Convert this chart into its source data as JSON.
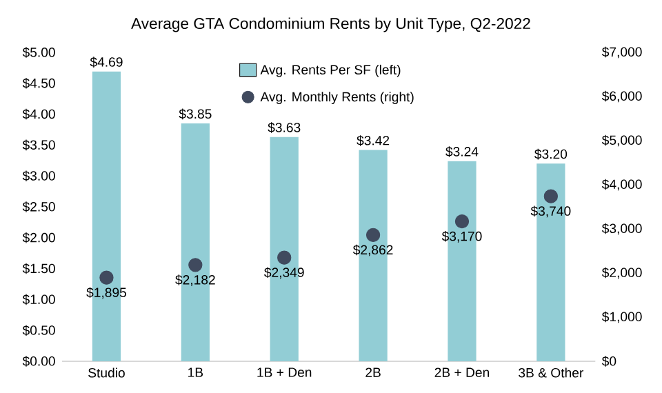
{
  "chart_data": {
    "type": "bar",
    "title": "Average GTA Condominium Rents by Unit Type, Q2-2022",
    "categories": [
      "Studio",
      "1B",
      "1B + Den",
      "2B",
      "2B + Den",
      "3B & Other"
    ],
    "series": [
      {
        "name": "Avg. Rents Per SF (left)",
        "color": "#92cdd5",
        "values": [
          4.69,
          3.85,
          3.63,
          3.42,
          3.24,
          3.2
        ],
        "value_labels": [
          "$4.69",
          "$3.85",
          "$3.63",
          "$3.42",
          "$3.24",
          "$3.20"
        ]
      },
      {
        "name": "Avg. Monthly Rents (right)",
        "type": "scatter",
        "axis": "y2",
        "marker": "circle",
        "color": "#404a5e",
        "values": [
          1895,
          2182,
          2349,
          2862,
          3170,
          3740
        ],
        "value_labels": [
          "$1,895",
          "$2,182",
          "$2,349",
          "$2,862",
          "$3,170",
          "$3,740"
        ]
      }
    ],
    "ylim": [
      0,
      5
    ],
    "yticks": [
      {
        "value": 0,
        "label": "$0.00"
      },
      {
        "value": 0.5,
        "label": "$0.50"
      },
      {
        "value": 1,
        "label": "$1.00"
      },
      {
        "value": 1.5,
        "label": "$1.50"
      },
      {
        "value": 2,
        "label": "$2.00"
      },
      {
        "value": 2.5,
        "label": "$2.50"
      },
      {
        "value": 3,
        "label": "$3.00"
      },
      {
        "value": 3.5,
        "label": "$3.50"
      },
      {
        "value": 4,
        "label": "$4.00"
      },
      {
        "value": 4.5,
        "label": "$4.50"
      },
      {
        "value": 5,
        "label": "$5.00"
      }
    ],
    "y2lim": [
      0,
      7000
    ],
    "y2ticks": [
      {
        "value": 0,
        "label": "$0"
      },
      {
        "value": 1000,
        "label": "$1,000"
      },
      {
        "value": 2000,
        "label": "$2,000"
      },
      {
        "value": 3000,
        "label": "$3,000"
      },
      {
        "value": 4000,
        "label": "$4,000"
      },
      {
        "value": 5000,
        "label": "$5,000"
      },
      {
        "value": 6000,
        "label": "$6,000"
      },
      {
        "value": 7000,
        "label": "$7,000"
      }
    ],
    "legend": "top",
    "grid": false
  }
}
